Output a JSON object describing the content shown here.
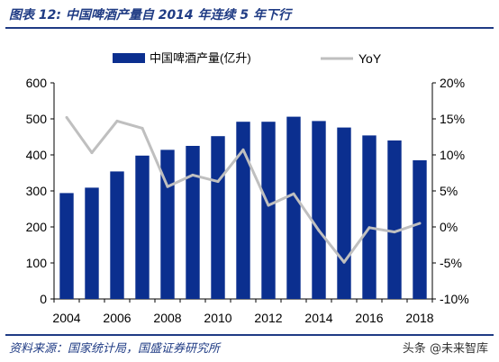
{
  "figure": {
    "title": "图表 12:  中国啤酒产量自 2014 年连续 5 年下行",
    "source": "资料来源：国家统计局，国盛证券研究所",
    "watermark": "头条 @未来智库"
  },
  "colors": {
    "bar": "#0b2f8f",
    "line": "#bfbfbf",
    "frame": "#1f3b84",
    "text": "#000000"
  },
  "chart_data": {
    "type": "bar",
    "title": "",
    "xlabel": "",
    "ylabel": "",
    "categories": [
      "2004",
      "2005",
      "2006",
      "2007",
      "2008",
      "2009",
      "2010",
      "2011",
      "2012",
      "2013",
      "2014",
      "2015",
      "2016",
      "2017",
      "2018"
    ],
    "x_tick_labels": [
      "2004",
      "2006",
      "2008",
      "2010",
      "2012",
      "2014",
      "2016",
      "2018"
    ],
    "ylim": [
      0,
      600
    ],
    "y_ticks": [
      0,
      100,
      200,
      300,
      400,
      500,
      600
    ],
    "y2lim": [
      -10,
      20
    ],
    "y2_ticks": [
      -10,
      -5,
      0,
      5,
      10,
      15,
      20
    ],
    "y2_tick_labels": [
      "-10%",
      "-5%",
      "0%",
      "5%",
      "10%",
      "15%",
      "20%"
    ],
    "legend_position": "top",
    "grid": false,
    "series": [
      {
        "name": "中国啤酒产量(亿升)",
        "type": "bar",
        "axis": "left",
        "values": [
          294,
          309,
          354,
          398,
          414,
          425,
          452,
          492,
          492,
          506,
          494,
          476,
          454,
          440,
          385
        ]
      },
      {
        "name": "YoY",
        "type": "line",
        "axis": "right",
        "values": [
          15.2,
          10.3,
          14.7,
          13.7,
          5.6,
          7.2,
          6.3,
          10.7,
          3.0,
          4.6,
          -0.5,
          -4.9,
          -0.1,
          -0.7,
          0.5
        ]
      }
    ]
  }
}
